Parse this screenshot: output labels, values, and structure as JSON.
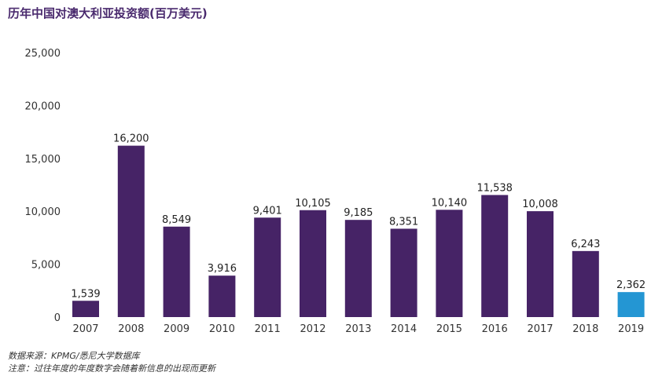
{
  "chart_data": {
    "type": "bar",
    "title": "历年中国对澳大利亚投资额(百万美元)",
    "xlabel": "",
    "ylabel": "",
    "categories": [
      "2007",
      "2008",
      "2009",
      "2010",
      "2011",
      "2012",
      "2013",
      "2014",
      "2015",
      "2016",
      "2017",
      "2018",
      "2019"
    ],
    "values": [
      1539,
      16200,
      8549,
      3916,
      9401,
      10105,
      9185,
      8351,
      10140,
      11538,
      10008,
      6243,
      2362
    ],
    "value_labels": [
      "1,539",
      "16,200",
      "8,549",
      "3,916",
      "9,401",
      "10,105",
      "9,185",
      "8,351",
      "10,140",
      "11,538",
      "10,008",
      "6,243",
      "2,362"
    ],
    "ylim": [
      0,
      25000
    ],
    "yticks": [
      0,
      5000,
      10000,
      15000,
      20000,
      25000
    ],
    "ytick_labels": [
      "0",
      "5,000",
      "10,000",
      "15,000",
      "20,000",
      "25,000"
    ],
    "grid": false,
    "legend": "none",
    "bar_color": "#462366",
    "highlight_index": 12,
    "highlight_color": "#2496d3"
  },
  "footer": {
    "source": "数据来源：KPMG/悉尼大学数据库",
    "note": "注意：过往年度的年度数字会随着新信息的出现而更新"
  }
}
